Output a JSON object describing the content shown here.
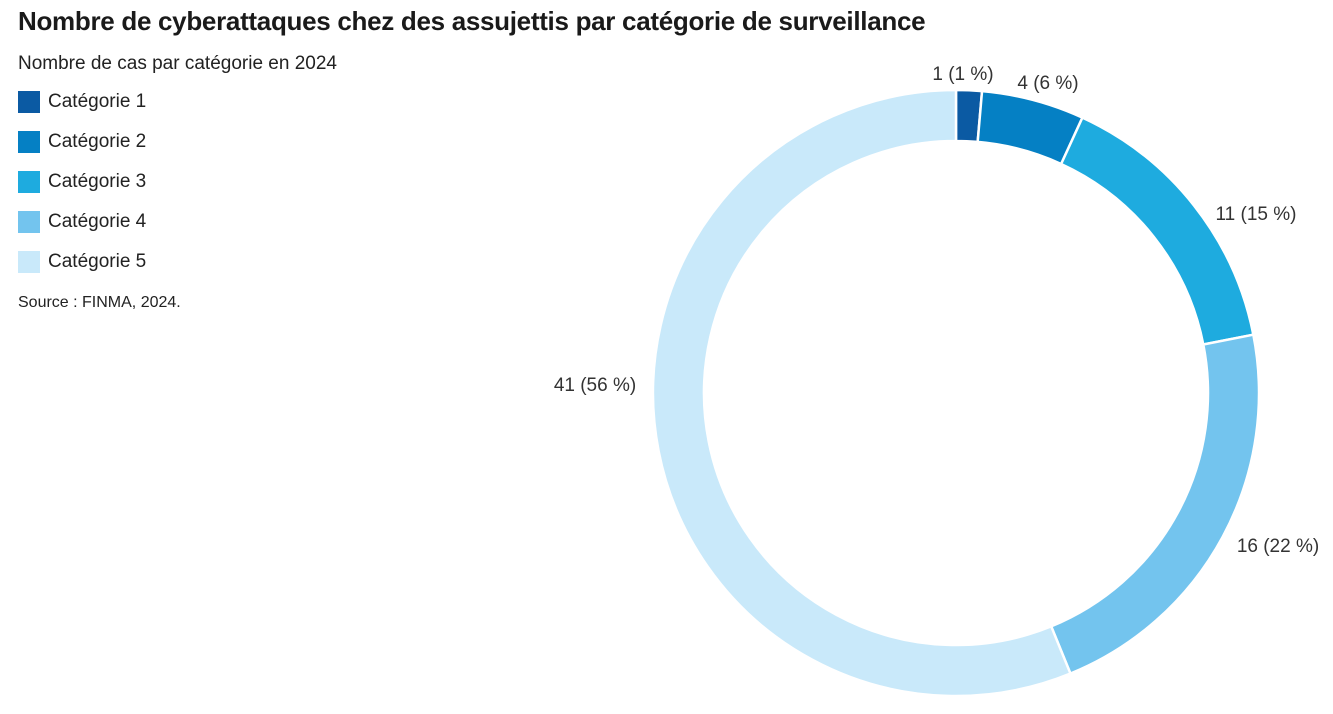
{
  "title": "Nombre de cyberattaques chez des assujettis par catégorie de surveillance",
  "subtitle": "Nombre de cas par catégorie en 2024",
  "source": "Source : FINMA, 2024.",
  "legend": [
    {
      "label": "Catégorie 1",
      "color": "#0b5aa3"
    },
    {
      "label": "Catégorie 2",
      "color": "#0580c4"
    },
    {
      "label": "Catégorie 3",
      "color": "#1eabdf"
    },
    {
      "label": "Catégorie 4",
      "color": "#73c4ee"
    },
    {
      "label": "Catégorie 5",
      "color": "#c9e9fa"
    }
  ],
  "chart_data": {
    "type": "pie",
    "variant": "donut",
    "title": "Nombre de cyberattaques chez des assujettis par catégorie de surveillance",
    "subtitle": "Nombre de cas par catégorie en 2024",
    "categories": [
      "Catégorie 1",
      "Catégorie 2",
      "Catégorie 3",
      "Catégorie 4",
      "Catégorie 5"
    ],
    "values": [
      1,
      4,
      11,
      16,
      41
    ],
    "percentages": [
      1,
      6,
      15,
      22,
      56
    ],
    "labels": [
      "1 (1 %)",
      "4 (6 %)",
      "11 (15 %)",
      "16 (22 %)",
      "41 (56 %)"
    ],
    "colors": [
      "#0b5aa3",
      "#0580c4",
      "#1eabdf",
      "#73c4ee",
      "#c9e9fa"
    ],
    "legend_position": "top-left"
  }
}
